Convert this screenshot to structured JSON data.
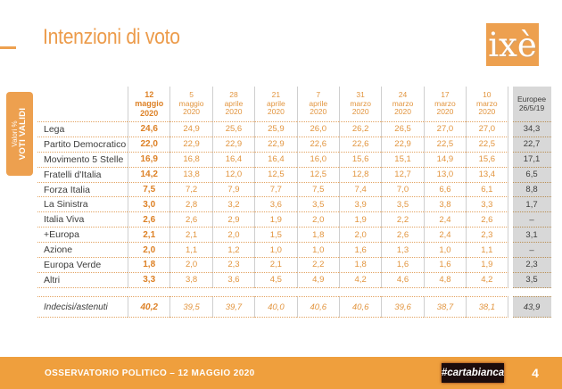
{
  "title": "Intenzioni di voto",
  "logo_text": "ixè",
  "side_label": {
    "small": "Valori %",
    "big": "VOTI VALIDI"
  },
  "colors": {
    "accent_orange": "#eda04f",
    "table_value_orange": "#e2953f",
    "bold_value_orange": "#dd8126",
    "gray_column_bg": "#d8d8d8",
    "dark_text": "#3c3c3b",
    "footer_bar": "#ef9f3d",
    "brand_box": "#1c0c0c"
  },
  "chart_data": {
    "type": "table",
    "title": "Intenzioni di voto",
    "columns": [
      "12 maggio 2020",
      "5 maggio 2020",
      "28 aprile 2020",
      "21 aprile 2020",
      "7 aprile 2020",
      "31 marzo 2020",
      "24 marzo 2020",
      "17 marzo 2020",
      "10 marzo 2020",
      "Europee 26/5/19"
    ],
    "header_lines": [
      [
        "12",
        "maggio",
        "2020"
      ],
      [
        "5",
        "maggio",
        "2020"
      ],
      [
        "28",
        "aprile",
        "2020"
      ],
      [
        "21",
        "aprile",
        "2020"
      ],
      [
        "7",
        "aprile",
        "2020"
      ],
      [
        "31",
        "marzo",
        "2020"
      ],
      [
        "24",
        "marzo",
        "2020"
      ],
      [
        "17",
        "marzo",
        "2020"
      ],
      [
        "10",
        "marzo",
        "2020"
      ],
      [
        "Europee",
        "26/5/19"
      ]
    ],
    "rows": [
      {
        "label": "Lega",
        "values": [
          "24,6",
          "24,9",
          "25,6",
          "25,9",
          "26,0",
          "26,2",
          "26,5",
          "27,0",
          "27,0",
          "34,3"
        ]
      },
      {
        "label": "Partito Democratico",
        "values": [
          "22,0",
          "22,9",
          "22,9",
          "22,9",
          "22,6",
          "22,6",
          "22,9",
          "22,5",
          "22,5",
          "22,7"
        ]
      },
      {
        "label": "Movimento 5 Stelle",
        "values": [
          "16,9",
          "16,8",
          "16,4",
          "16,4",
          "16,0",
          "15,6",
          "15,1",
          "14,9",
          "15,6",
          "17,1"
        ]
      },
      {
        "label": "Fratelli d'Italia",
        "values": [
          "14,2",
          "13,8",
          "12,0",
          "12,5",
          "12,5",
          "12,8",
          "12,7",
          "13,0",
          "13,4",
          "6,5"
        ]
      },
      {
        "label": "Forza Italia",
        "values": [
          "7,5",
          "7,2",
          "7,9",
          "7,7",
          "7,5",
          "7,4",
          "7,0",
          "6,6",
          "6,1",
          "8,8"
        ]
      },
      {
        "label": "La Sinistra",
        "values": [
          "3,0",
          "2,8",
          "3,2",
          "3,6",
          "3,5",
          "3,9",
          "3,5",
          "3,8",
          "3,3",
          "1,7"
        ]
      },
      {
        "label": "Italia Viva",
        "values": [
          "2,6",
          "2,6",
          "2,9",
          "1,9",
          "2,0",
          "1,9",
          "2,2",
          "2,4",
          "2,6",
          "–"
        ]
      },
      {
        "label": "+Europa",
        "values": [
          "2,1",
          "2,1",
          "2,0",
          "1,5",
          "1,8",
          "2,0",
          "2,6",
          "2,4",
          "2,3",
          "3,1"
        ]
      },
      {
        "label": "Azione",
        "values": [
          "2,0",
          "1,1",
          "1,2",
          "1,0",
          "1,0",
          "1,6",
          "1,3",
          "1,0",
          "1,1",
          "–"
        ]
      },
      {
        "label": "Europa Verde",
        "values": [
          "1,8",
          "2,0",
          "2,3",
          "2,1",
          "2,2",
          "1,8",
          "1,6",
          "1,6",
          "1,9",
          "2,3"
        ]
      },
      {
        "label": "Altri",
        "values": [
          "3,3",
          "3,8",
          "3,6",
          "4,5",
          "4,9",
          "4,2",
          "4,6",
          "4,8",
          "4,2",
          "3,5"
        ]
      }
    ],
    "summary_row": {
      "label": "Indecisi/astenuti",
      "values": [
        "40,2",
        "39,5",
        "39,7",
        "40,0",
        "40,6",
        "40,6",
        "39,6",
        "38,7",
        "38,1",
        "43,9"
      ]
    }
  },
  "footer": {
    "left": "OSSERVATORIO POLITICO – 12 MAGGIO 2020",
    "brand": "#cartabianca",
    "page": "4"
  }
}
